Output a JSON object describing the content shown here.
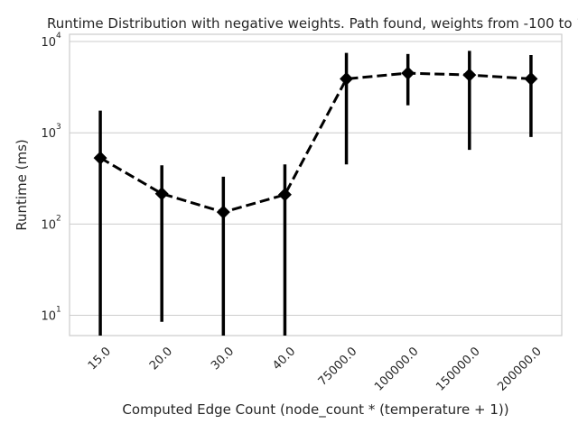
{
  "chart_data": {
    "type": "line",
    "title": "Runtime Distribution with negative weights. Path found, weights from -100 to 100",
    "xlabel": "Computed Edge Count (node_count * (temperature + 1))",
    "ylabel": "Runtime (ms)",
    "categories": [
      "15.0",
      "20.0",
      "30.0",
      "40.0",
      "75000.0",
      "100000.0",
      "150000.0",
      "200000.0"
    ],
    "y_scale": "log",
    "y_tick_base": "10",
    "y_ticks": [
      {
        "value": 10,
        "exponent": "1"
      },
      {
        "value": 100,
        "exponent": "2"
      },
      {
        "value": 1000,
        "exponent": "3"
      },
      {
        "value": 10000,
        "exponent": "4"
      }
    ],
    "ylim": [
      6,
      12000
    ],
    "grid": "horizontal",
    "line_style": "dashed",
    "marker": "diamond",
    "color": "#000000",
    "series": [
      {
        "values": [
          530,
          215,
          135,
          210,
          3900,
          4500,
          4300,
          3900
        ],
        "error_low": [
          6,
          8.5,
          6,
          6,
          450,
          2000,
          650,
          900
        ],
        "error_high": [
          1750,
          440,
          330,
          450,
          7500,
          7300,
          7900,
          7100
        ]
      }
    ]
  }
}
